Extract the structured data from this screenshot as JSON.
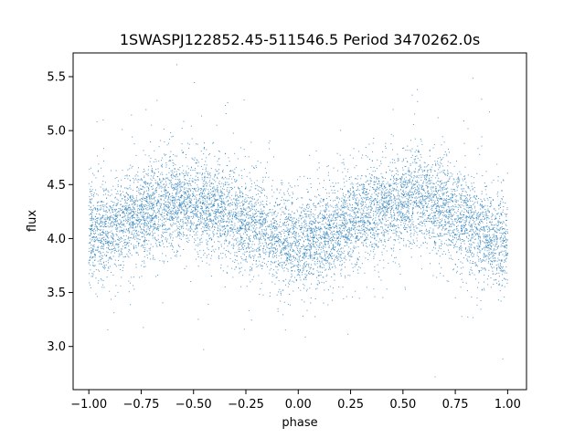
{
  "chart_data": {
    "type": "scatter",
    "title": "1SWASPJ122852.45-511546.5 Period 3470262.0s",
    "xlabel": "phase",
    "ylabel": "flux",
    "xlim": [
      -1.075,
      1.09
    ],
    "ylim": [
      2.6,
      5.72
    ],
    "xticks": [
      -1.0,
      -0.75,
      -0.5,
      -0.25,
      0.0,
      0.25,
      0.5,
      0.75,
      1.0
    ],
    "xtick_labels": [
      "−1.00",
      "−0.75",
      "−0.50",
      "−0.25",
      "0.00",
      "0.25",
      "0.50",
      "0.75",
      "1.00"
    ],
    "yticks": [
      3.0,
      3.5,
      4.0,
      4.5,
      5.0,
      5.5
    ],
    "ytick_labels": [
      "3.0",
      "3.5",
      "4.0",
      "4.5",
      "5.0",
      "5.5"
    ],
    "grid": false,
    "point_color": "#1f77b4",
    "phase_range": [
      -1.0,
      1.0
    ],
    "trend": {
      "phase": [
        -1.0,
        -0.9,
        -0.8,
        -0.7,
        -0.6,
        -0.5,
        -0.4,
        -0.3,
        -0.2,
        -0.1,
        0.0,
        0.1,
        0.2,
        0.3,
        0.4,
        0.5,
        0.6,
        0.7,
        0.8,
        0.9,
        1.0
      ],
      "flux": [
        4.05,
        4.1,
        4.18,
        4.28,
        4.35,
        4.32,
        4.28,
        4.2,
        4.12,
        4.02,
        3.95,
        4.02,
        4.1,
        4.2,
        4.28,
        4.35,
        4.4,
        4.3,
        4.15,
        4.02,
        3.97
      ],
      "scatter": 0.22
    }
  }
}
